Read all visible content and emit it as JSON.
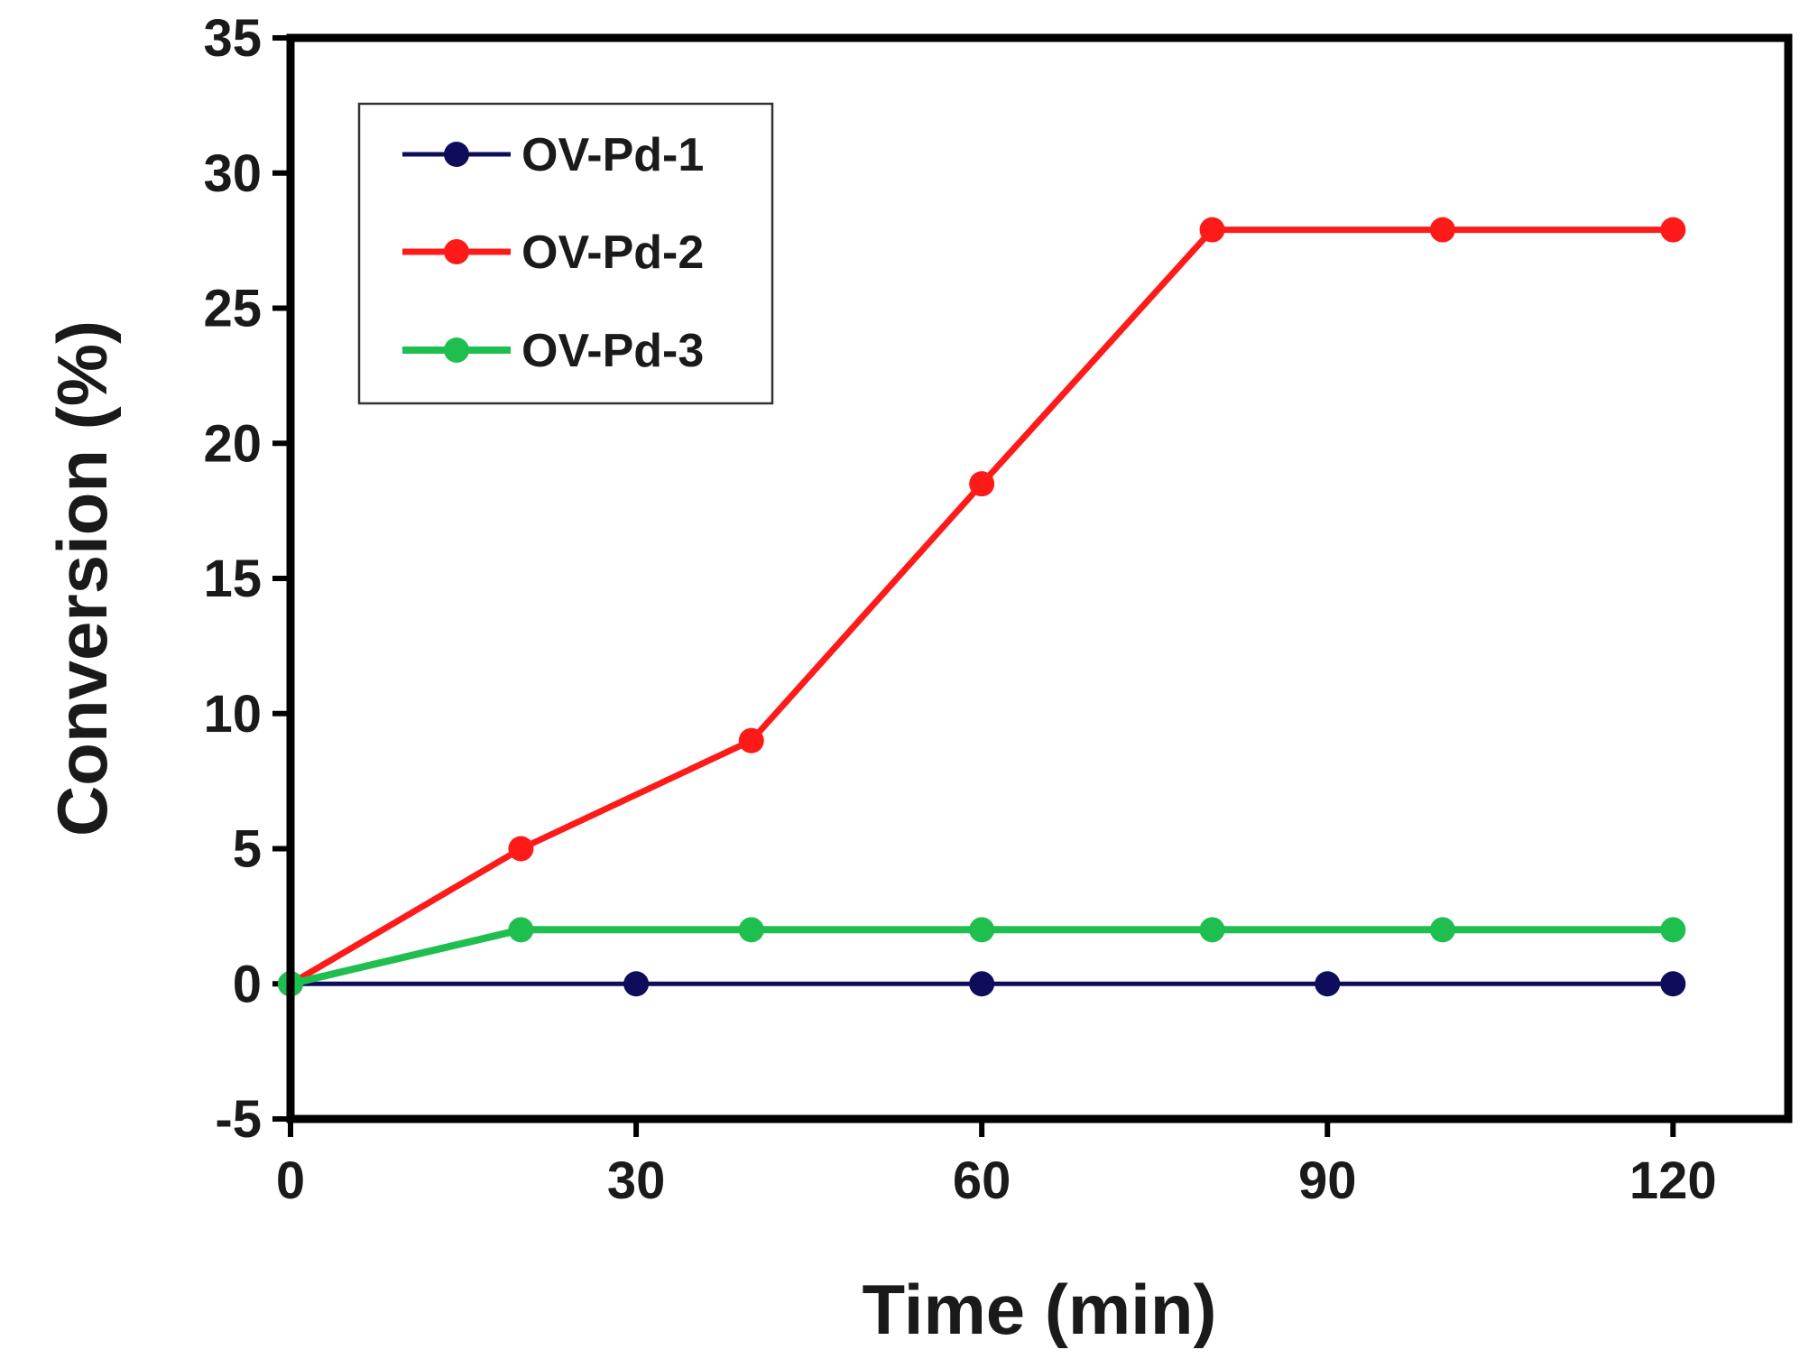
{
  "chart_data": {
    "type": "line",
    "title": "",
    "xlabel": "Time (min)",
    "ylabel": "Conversion (%)",
    "xlim": [
      0,
      130
    ],
    "ylim": [
      -5,
      35
    ],
    "xticks": [
      0,
      30,
      60,
      90,
      120
    ],
    "yticks": [
      -5,
      0,
      5,
      10,
      15,
      20,
      25,
      30,
      35
    ],
    "grid": false,
    "legend_position": "top-left",
    "series": [
      {
        "name": "OV-Pd-1",
        "color": "#0d0d5c",
        "x": [
          0,
          30,
          60,
          90,
          120
        ],
        "y": [
          0,
          0,
          0,
          0,
          0
        ]
      },
      {
        "name": "OV-Pd-2",
        "color": "#ff1a1a",
        "x": [
          0,
          20,
          40,
          60,
          80,
          100,
          120
        ],
        "y": [
          0,
          5,
          9,
          18.5,
          27.9,
          27.9,
          27.9
        ]
      },
      {
        "name": "OV-Pd-3",
        "color": "#1fbf4f",
        "x": [
          0,
          20,
          40,
          60,
          80,
          100,
          120
        ],
        "y": [
          0,
          2,
          2,
          2,
          2,
          2,
          2
        ]
      }
    ]
  }
}
